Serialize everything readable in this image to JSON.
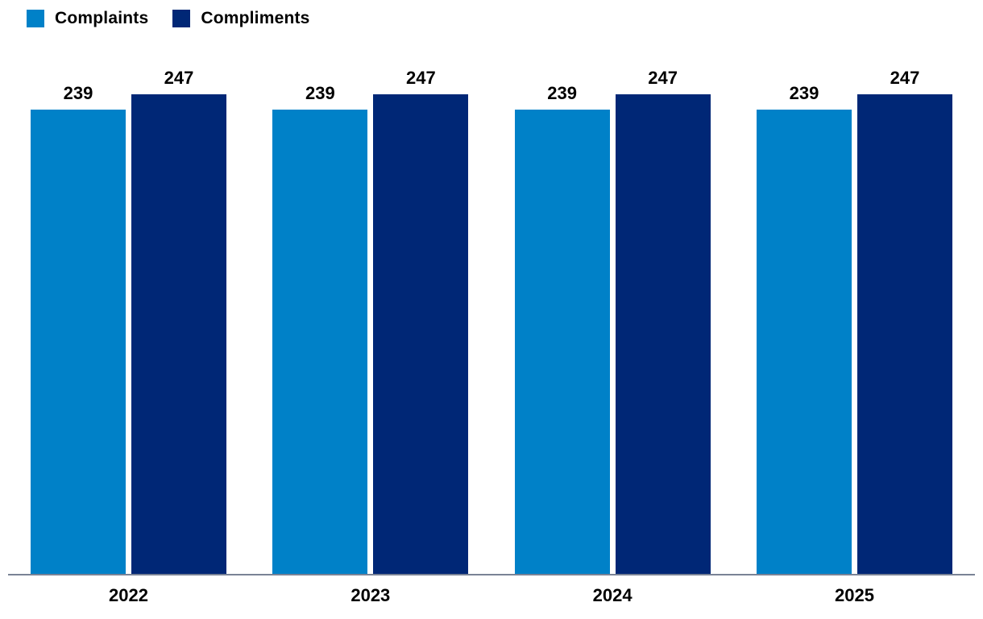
{
  "chart_data": {
    "type": "bar",
    "categories": [
      "2022",
      "2023",
      "2024",
      "2025"
    ],
    "series": [
      {
        "name": "Complaints",
        "color": "#0081C8",
        "values": [
          239,
          239,
          239,
          239
        ]
      },
      {
        "name": "Compliments",
        "color": "#002776",
        "values": [
          247,
          247,
          247,
          247
        ]
      }
    ],
    "title": "",
    "xlabel": "",
    "ylabel": "",
    "ylim": [
      0,
      247
    ],
    "grid": false,
    "legend_position": "top-left",
    "value_labels_shown": true,
    "axis_line_color": "#7a8396"
  }
}
